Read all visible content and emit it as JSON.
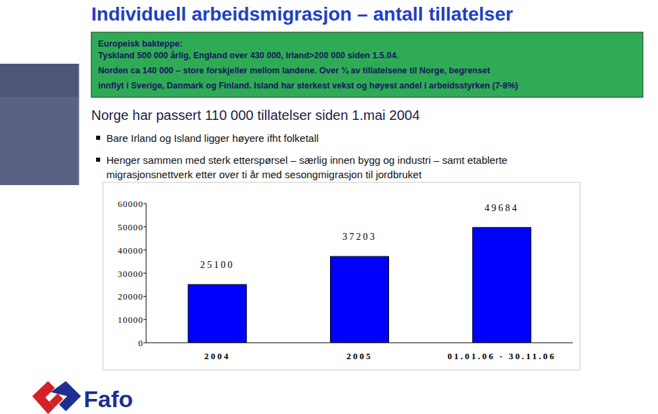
{
  "chart_data": {
    "type": "bar",
    "title": "Individuell arbeidsmigrasjon – antall tillatelser",
    "subtitle": "Norge har passert 110 000 tillatelser siden 1.mai 2004",
    "annotations": [
      "Europeisk bakteppe:",
      "Tyskland 500 000 årlig, England over 430 000, Irland>200 000 siden 1.5.04.",
      "Norden ca 140 000 – store forskjeller mellom landene. Over ¾ av tillatelsene til Norge, begrenset",
      "innflyt i Sverige, Danmark og Finland. Island har sterkest vekst og høyest andel i arbeidsstyrken (7-8%)",
      "Bare Irland og Island ligger høyere ifht folketall",
      "Henger sammen med sterk etterspørsel – særlig innen bygg og industri – samt etablerte",
      "migrasjonsnettverk etter over ti år med sesongmigrasjon til jordbruket",
      "Fafo"
    ],
    "categories": [
      "2004",
      "2005",
      "01.01.06 - 30.11.06"
    ],
    "values": [
      25100,
      37203,
      49684
    ],
    "color": "#0000ff",
    "ylim": [
      0,
      60000
    ],
    "yticks": [
      0,
      10000,
      20000,
      30000,
      40000,
      50000,
      60000
    ],
    "grid": false,
    "data_labels": true
  }
}
